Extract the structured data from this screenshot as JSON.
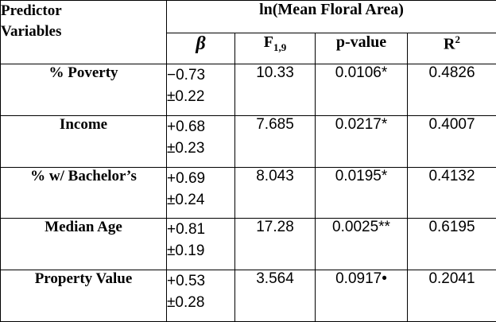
{
  "table": {
    "header": {
      "predictor": [
        "Predictor",
        "Variables"
      ],
      "group": "ln(Mean Floral Area)",
      "beta": "β",
      "f_base": "F",
      "f_sub": "1,9",
      "pvalue": "p-value",
      "r_base": "R",
      "r_sup": "2"
    },
    "rows": [
      {
        "name": "% Poverty",
        "beta": "−0.73",
        "se": "±0.22",
        "f": "10.33",
        "p": "0.0106*",
        "r2": "0.4826"
      },
      {
        "name": "Income",
        "beta": "+0.68",
        "se": "±0.23",
        "f": "7.685",
        "p": "0.0217*",
        "r2": "0.4007"
      },
      {
        "name": "% w/ Bachelor’s",
        "beta": "+0.69",
        "se": "±0.24",
        "f": "8.043",
        "p": "0.0195*",
        "r2": "0.4132"
      },
      {
        "name": "Median Age",
        "beta": "+0.81",
        "se": "±0.19",
        "f": "17.28",
        "p": "0.0025**",
        "r2": "0.6195"
      },
      {
        "name": "Property Value",
        "beta": "+0.53",
        "se": "±0.28",
        "f": "3.564",
        "p": "0.0917•",
        "r2": "0.2041"
      }
    ]
  }
}
